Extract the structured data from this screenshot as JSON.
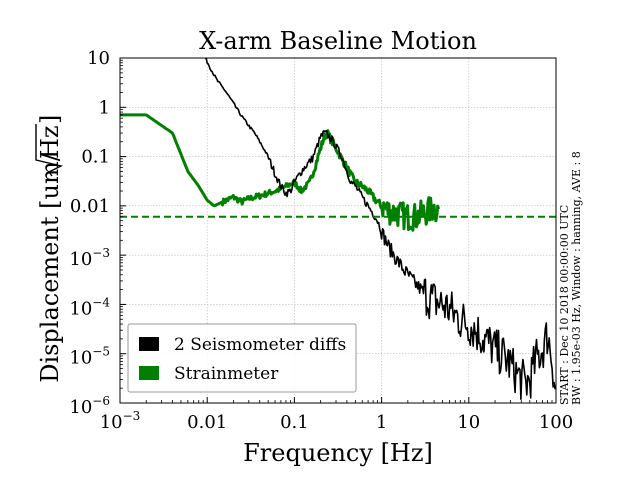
{
  "chart_data": {
    "type": "line",
    "title": "X-arm Baseline Motion",
    "xlabel": "Frequency [Hz]",
    "ylabel_main": "Displacement [um/",
    "ylabel_sqrt": "Hz",
    "ylabel_close": "]",
    "xscale": "log",
    "yscale": "log",
    "xlim": [
      0.001,
      100
    ],
    "ylim": [
      1e-06,
      10
    ],
    "grid": true,
    "legend_position": "lower-left",
    "x_ticks": [
      {
        "value": 0.001,
        "base": "10",
        "exp": "−3"
      },
      {
        "value": 0.01,
        "label": "0.01"
      },
      {
        "value": 0.1,
        "label": "0.1"
      },
      {
        "value": 1,
        "label": "1"
      },
      {
        "value": 10,
        "label": "10"
      },
      {
        "value": 100,
        "label": "100"
      }
    ],
    "y_ticks": [
      {
        "value": 1e-06,
        "base": "10",
        "exp": "−6"
      },
      {
        "value": 1e-05,
        "base": "10",
        "exp": "−5"
      },
      {
        "value": 0.0001,
        "base": "10",
        "exp": "−4"
      },
      {
        "value": 0.001,
        "base": "10",
        "exp": "−3"
      },
      {
        "value": 0.01,
        "label": "0.01"
      },
      {
        "value": 0.1,
        "label": "0.1"
      },
      {
        "value": 1,
        "label": "1"
      },
      {
        "value": 10,
        "label": "10"
      }
    ],
    "annotation_lines": [
      "START : Dec 10 2018 00:00:00 UTC",
      "BW : 1.95e-03 Hz, Window : hanning, AVE : 8"
    ],
    "reference_line": {
      "y": 0.006,
      "color": "#008000",
      "style": "dashed"
    },
    "series": [
      {
        "name": "2 Seismometer diffs",
        "color": "#000000",
        "x": [
          0.0095,
          0.011,
          0.013,
          0.016,
          0.02,
          0.025,
          0.03,
          0.035,
          0.04,
          0.045,
          0.05,
          0.055,
          0.06,
          0.07,
          0.08,
          0.09,
          0.1,
          0.12,
          0.14,
          0.16,
          0.18,
          0.2,
          0.22,
          0.24,
          0.27,
          0.3,
          0.35,
          0.4,
          0.45,
          0.5,
          0.6,
          0.7,
          0.8,
          0.9,
          1.0,
          1.2,
          1.5,
          1.8,
          2.0,
          2.5,
          3.0,
          3.5,
          4.0,
          5.0,
          6.0,
          7.0,
          8.0,
          10.0,
          12.0,
          15.0,
          18.0,
          20.0,
          25.0,
          30.0,
          35.0,
          40.0,
          45.0,
          50.0,
          55.0,
          60.0,
          70.0,
          80.0,
          90.0,
          100.0
        ],
        "y": [
          10,
          6,
          3.5,
          2.2,
          1.2,
          0.65,
          0.42,
          0.3,
          0.2,
          0.14,
          0.1,
          0.065,
          0.045,
          0.025,
          0.018,
          0.02,
          0.03,
          0.05,
          0.07,
          0.09,
          0.15,
          0.25,
          0.3,
          0.28,
          0.22,
          0.16,
          0.1,
          0.05,
          0.03,
          0.025,
          0.015,
          0.01,
          0.007,
          0.005,
          0.003,
          0.0015,
          0.0008,
          0.0005,
          0.0004,
          0.00025,
          0.00018,
          0.00014,
          0.00012,
          0.0001,
          8e-05,
          6e-05,
          5e-05,
          4e-05,
          3e-05,
          2e-05,
          1.5e-05,
          1.2e-05,
          9e-06,
          6e-06,
          4e-06,
          3e-06,
          2.5e-06,
          3e-06,
          5e-06,
          8e-06,
          1.2e-05,
          2.5e-05,
          8e-06,
          1.5e-06
        ]
      },
      {
        "name": "Strainmeter",
        "color": "#008000",
        "x": [
          0.001,
          0.002,
          0.004,
          0.006,
          0.008,
          0.01,
          0.012,
          0.015,
          0.02,
          0.025,
          0.03,
          0.04,
          0.05,
          0.06,
          0.07,
          0.08,
          0.1,
          0.12,
          0.15,
          0.18,
          0.2,
          0.22,
          0.24,
          0.27,
          0.3,
          0.35,
          0.4,
          0.45,
          0.5,
          0.6,
          0.7,
          0.8,
          0.9,
          1.0,
          1.2,
          1.5,
          2.0,
          2.5,
          3.0,
          3.5,
          4.0,
          4.5
        ],
        "y": [
          0.7,
          0.7,
          0.3,
          0.05,
          0.025,
          0.013,
          0.01,
          0.012,
          0.015,
          0.012,
          0.014,
          0.016,
          0.018,
          0.02,
          0.022,
          0.025,
          0.03,
          0.02,
          0.03,
          0.08,
          0.15,
          0.25,
          0.3,
          0.2,
          0.15,
          0.09,
          0.06,
          0.04,
          0.03,
          0.025,
          0.02,
          0.015,
          0.012,
          0.01,
          0.008,
          0.007,
          0.006,
          0.006,
          0.007,
          0.008,
          0.009,
          0.008
        ]
      }
    ]
  }
}
